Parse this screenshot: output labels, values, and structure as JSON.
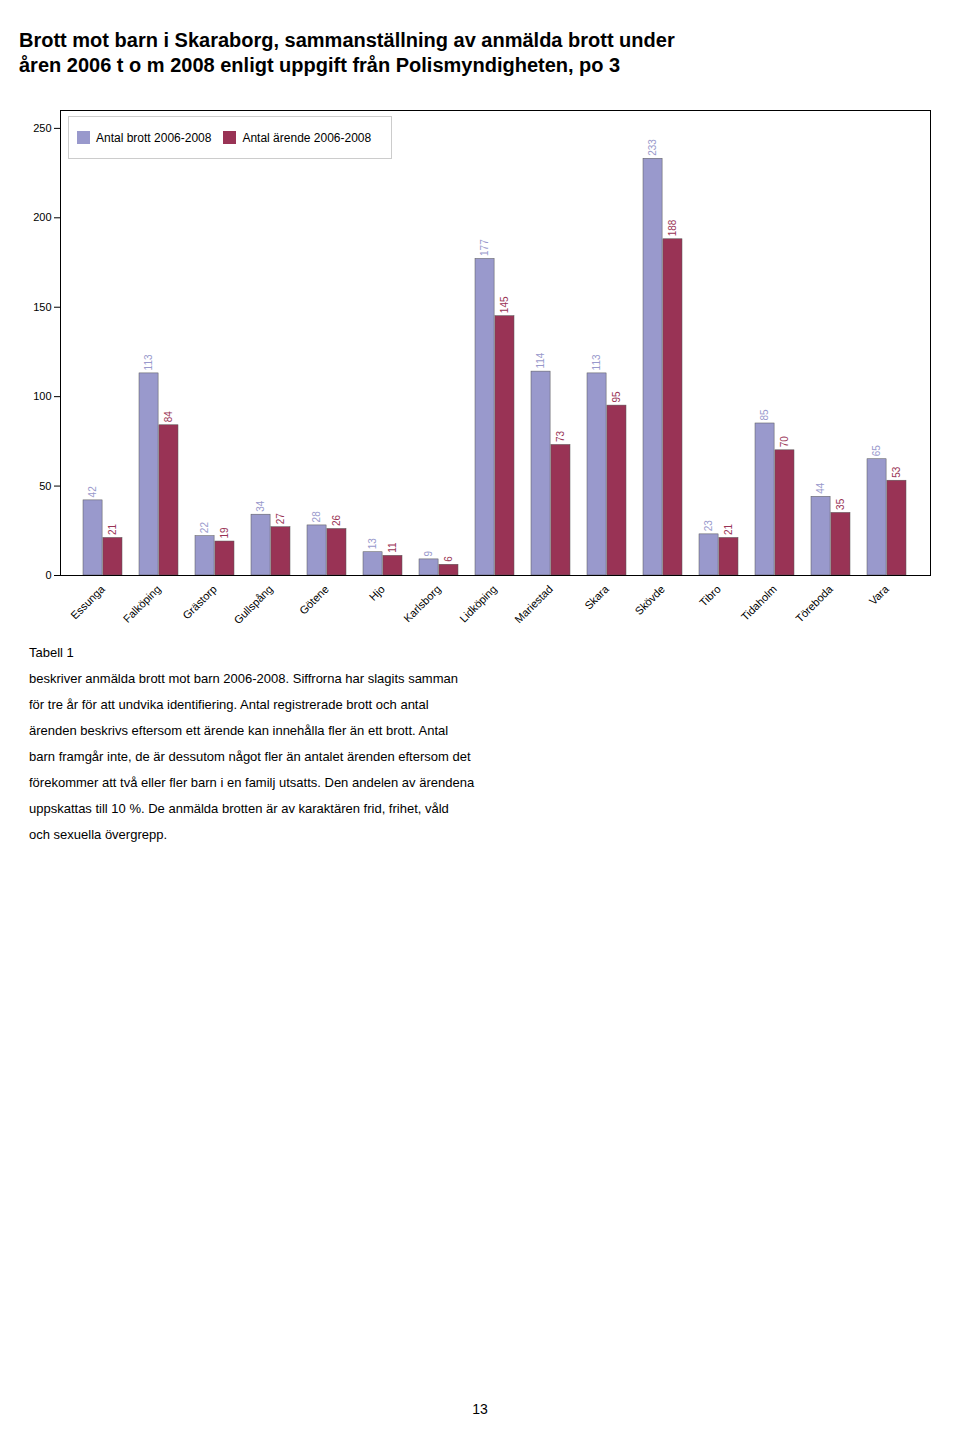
{
  "chart_data": {
    "type": "bar",
    "title": "Brott mot barn i Skaraborg, sammanställning av anmälda brott under\nåren 2006 t o m 2008 enligt uppgift från Polismyndigheten, po 3",
    "categories": [
      "Essunga",
      "Falköping",
      "Grästorp",
      "Gullspång",
      "Götene",
      "Hjo",
      "Karlsborg",
      "Lidköping",
      "Mariestad",
      "Skara",
      "Skövde",
      "Tibro",
      "Tidaholm",
      "Töreboda",
      "Vara"
    ],
    "series": [
      {
        "name": "Antal brott 2006-2008",
        "color": "#9999cc",
        "values": [
          42,
          113,
          22,
          34,
          28,
          13,
          9,
          177,
          114,
          113,
          233,
          23,
          85,
          44,
          65
        ]
      },
      {
        "name": "Antal ärende 2006-2008",
        "color": "#993355",
        "values": [
          21,
          84,
          19,
          27,
          26,
          11,
          6,
          145,
          73,
          95,
          188,
          21,
          70,
          35,
          53
        ]
      }
    ],
    "ylim": [
      0,
      260
    ],
    "yticks": [
      0,
      50,
      100,
      150,
      200,
      250
    ],
    "data_labels": true,
    "legend": "upper left",
    "grid": false,
    "annotations": [
      "Tabell 1",
      "beskriver anmälda brott mot barn 2006-2008. Siffrorna har slagits samman",
      "för tre år för att undvika identifiering. Antal registrerade brott och antal",
      "ärenden beskrivs eftersom ett ärende kan innehålla fler än ett brott.  Antal",
      "barn framgår inte, de är dessutom något fler än antalet ärenden eftersom det",
      "förekommer att två eller fler barn i en familj utsatts. Den andelen av ärendena",
      "uppskattas till 10 %. De anmälda brotten är av karaktären frid, frihet, våld",
      "och sexuella övergrepp.",
      "13"
    ]
  }
}
